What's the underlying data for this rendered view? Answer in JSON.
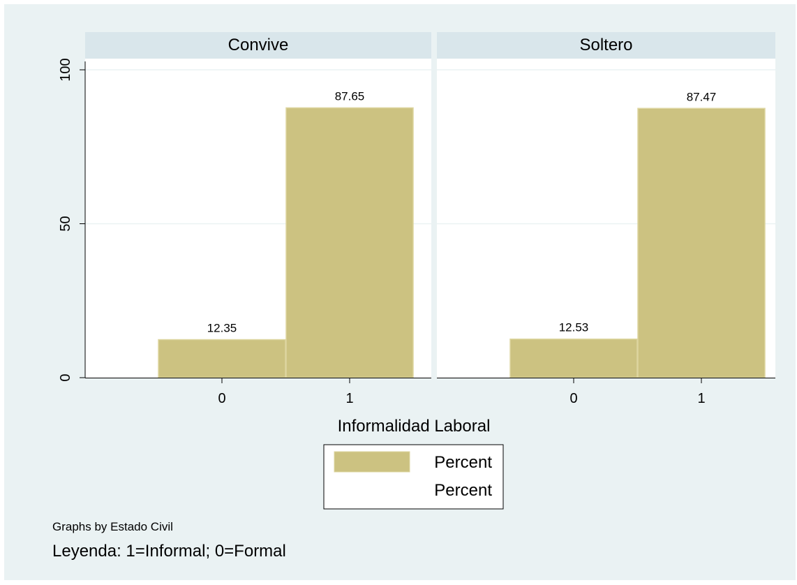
{
  "colors": {
    "background": "#eaf2f3",
    "plot_background": "#ffffff",
    "strip": "#d9e6eb",
    "bar_fill": "#ccc281",
    "bar_stroke": "#ddd59f",
    "grid": "#eaf2f3",
    "text": "#000000"
  },
  "chart_data": {
    "type": "bar",
    "x": [
      0,
      1
    ],
    "xlabel": "Informalidad Laboral",
    "ylabel": "",
    "ylim": [
      0,
      100
    ],
    "yticks": [
      0,
      50,
      100
    ],
    "grid": true,
    "panels": [
      {
        "title": "Convive",
        "values": [
          12.35,
          87.65
        ],
        "labels": [
          "12.35",
          "87.65"
        ]
      },
      {
        "title": "Soltero",
        "values": [
          12.53,
          87.47
        ],
        "labels": [
          "12.53",
          "87.47"
        ]
      }
    ],
    "legend": {
      "placement": "bottom",
      "entries": [
        "Percent",
        "Percent"
      ]
    },
    "notes": [
      "Graphs by Estado Civil",
      "Leyenda: 1=Informal; 0=Formal"
    ]
  }
}
